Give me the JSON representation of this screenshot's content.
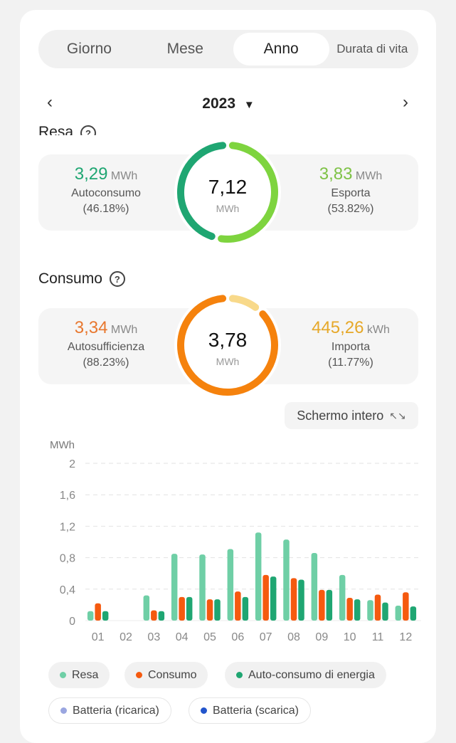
{
  "tabs": [
    {
      "label": "Giorno"
    },
    {
      "label": "Mese"
    },
    {
      "label": "Anno",
      "active": true
    },
    {
      "label": "Durata di vita"
    }
  ],
  "year_nav": {
    "year": "2023",
    "prev_icon": "chevron-left",
    "next_icon": "chevron-right",
    "dropdown_icon": "triangle-down"
  },
  "resa": {
    "title": "Resa",
    "total": "7,12",
    "total_unit": "MWh",
    "left": {
      "value": "3,29",
      "unit": "MWh",
      "label": "Autoconsumo",
      "pct": "(46.18%)",
      "color": "#1fa672",
      "fraction": 0.4618
    },
    "right": {
      "value": "3,83",
      "unit": "MWh",
      "label": "Esporta",
      "pct": "(53.82%)",
      "color": "#7ed43f",
      "fraction": 0.5382
    }
  },
  "consumo": {
    "title": "Consumo",
    "total": "3,78",
    "total_unit": "MWh",
    "left": {
      "value": "3,34",
      "unit": "MWh",
      "label": "Autosufficienza",
      "pct": "(88.23%)",
      "color": "#f5820d",
      "fraction": 0.8823
    },
    "right": {
      "value": "445,26",
      "unit": "kWh",
      "label": "Importa",
      "pct": "(11.77%)",
      "color": "#e6a829",
      "ring_color": "#f8d98a",
      "fraction": 0.1177
    }
  },
  "fullscreen": {
    "label": "Schermo intero",
    "icon": "expand-arrows"
  },
  "chart_data": {
    "type": "bar",
    "ylabel": "MWh",
    "ylim": [
      0,
      2
    ],
    "yticks": [
      "0",
      "0,4",
      "0,8",
      "1,2",
      "1,6",
      "2"
    ],
    "ytick_values": [
      0,
      0.4,
      0.8,
      1.2,
      1.6,
      2
    ],
    "grid": true,
    "categories": [
      "01",
      "02",
      "03",
      "04",
      "05",
      "06",
      "07",
      "08",
      "09",
      "10",
      "11",
      "12"
    ],
    "series": [
      {
        "name": "Resa",
        "color": "#6fcfa6",
        "values": [
          0.12,
          0,
          0.32,
          0.85,
          0.84,
          0.91,
          1.12,
          1.03,
          0.86,
          0.58,
          0.26,
          0.19
        ]
      },
      {
        "name": "Consumo",
        "color": "#f55a0f",
        "values": [
          0.22,
          0,
          0.13,
          0.3,
          0.27,
          0.37,
          0.58,
          0.54,
          0.39,
          0.29,
          0.33,
          0.36
        ]
      },
      {
        "name": "Auto-consumo di energia",
        "color": "#1fa672",
        "values": [
          0.12,
          0,
          0.12,
          0.3,
          0.27,
          0.3,
          0.56,
          0.52,
          0.39,
          0.27,
          0.23,
          0.18
        ]
      }
    ],
    "legend_placement": "bottom"
  },
  "legend_extra": [
    {
      "name": "Batteria (ricarica)",
      "color": "#9aa6e0"
    },
    {
      "name": "Batteria (scarica)",
      "color": "#2255cc"
    }
  ]
}
